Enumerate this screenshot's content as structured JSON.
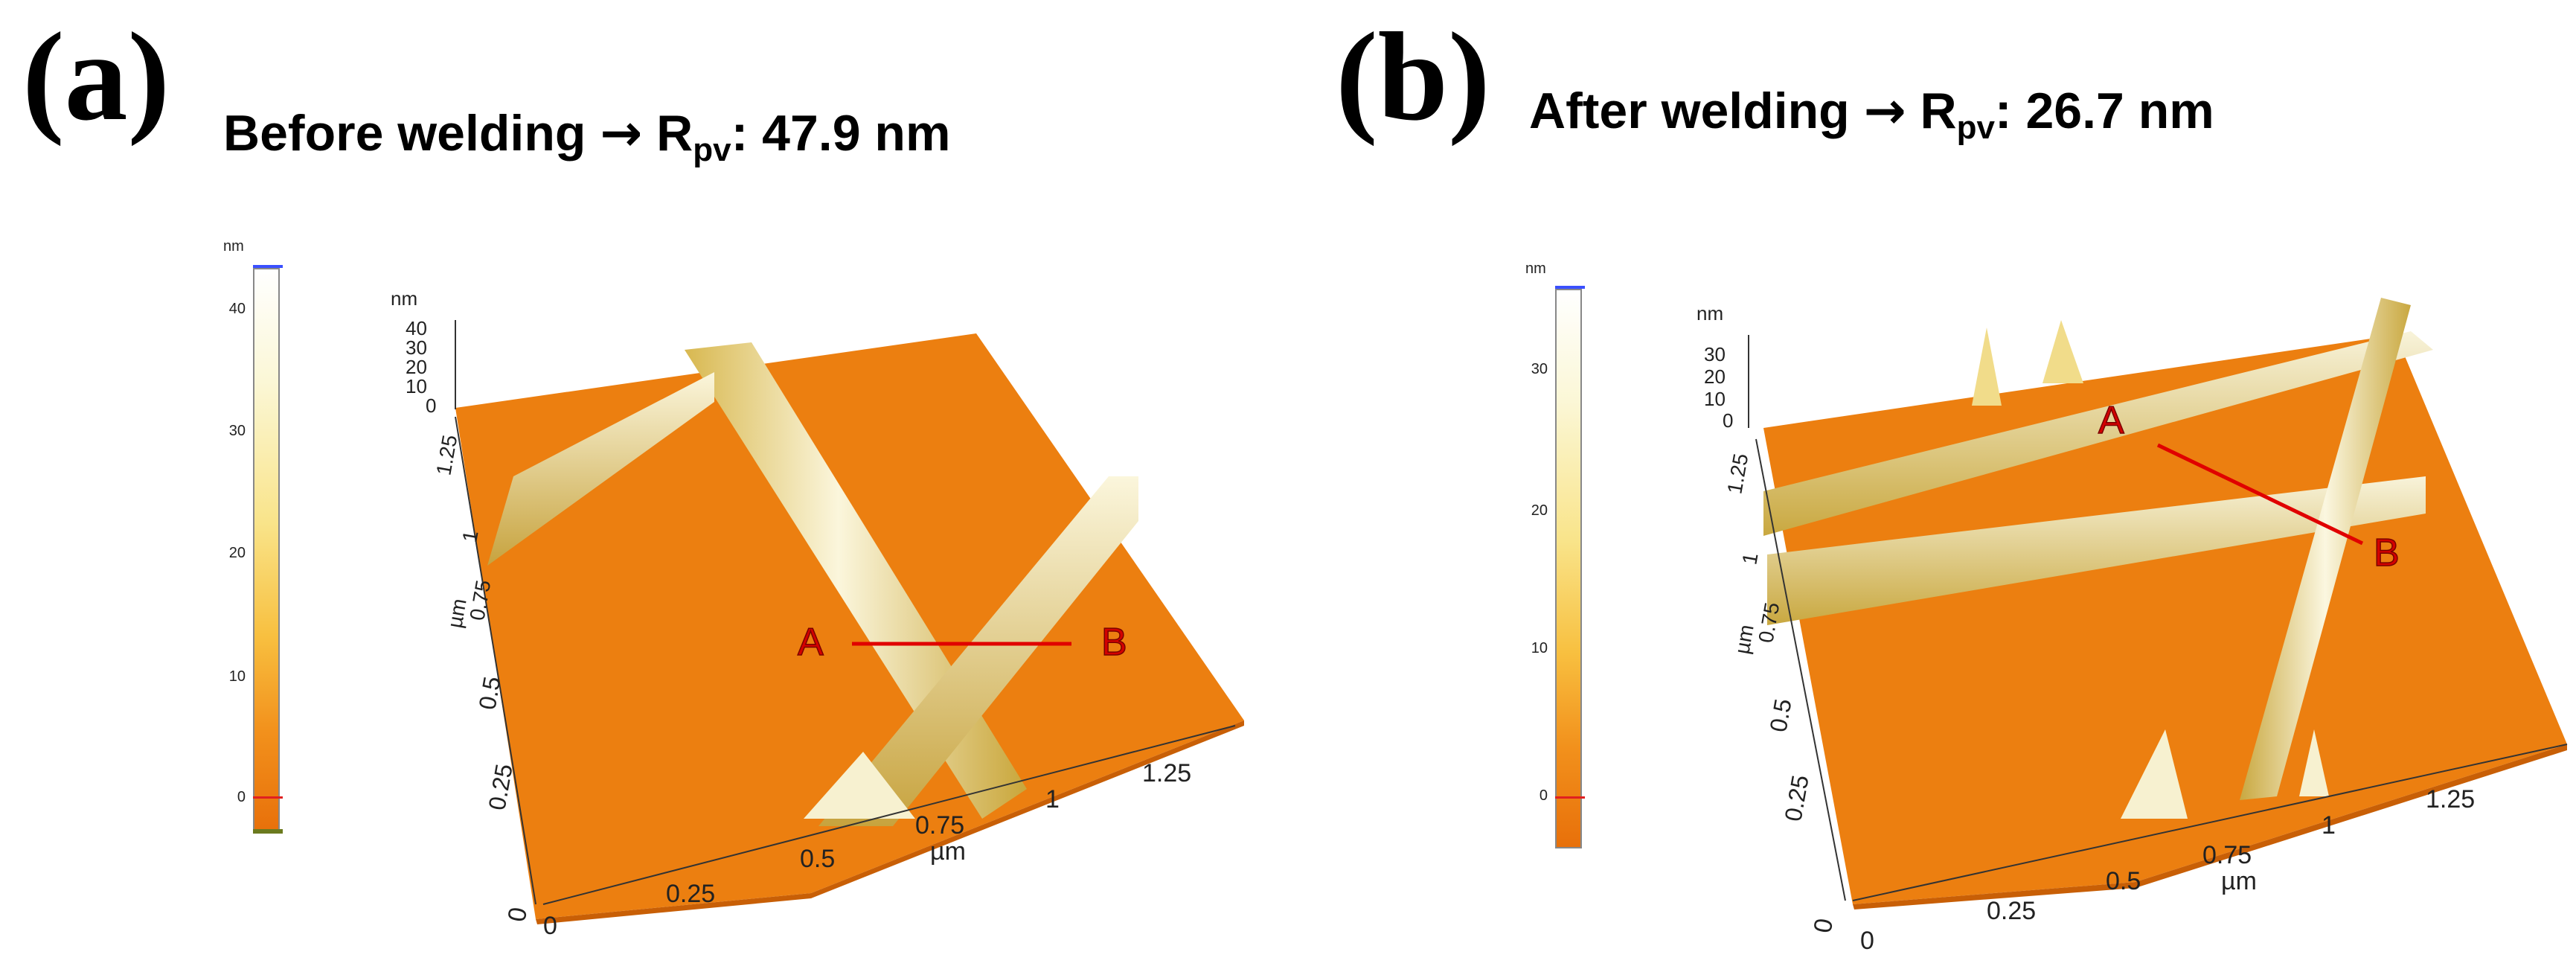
{
  "panel_a": {
    "letter": "(a)",
    "title_prefix": "Before welding ",
    "arrow": "→",
    "title_r": " R",
    "title_sub": "pv",
    "title_value": ": 47.9 nm",
    "colorbar": {
      "unit": "nm",
      "ticks": [
        "40",
        "30",
        "20",
        "10",
        "0"
      ]
    },
    "z_axis": {
      "unit": "nm",
      "ticks": [
        "40",
        "30",
        "20",
        "10",
        "0"
      ]
    },
    "y_axis": {
      "unit": "µm",
      "ticks": [
        "1.25",
        "1",
        "0.75",
        "0.5",
        "0.25",
        "0"
      ]
    },
    "x_axis": {
      "unit": "µm",
      "ticks": [
        "0",
        "0.25",
        "0.5",
        "0.75",
        "1",
        "1.25"
      ]
    },
    "marker_a": "A",
    "marker_b": "B"
  },
  "panel_b": {
    "letter": "(b)",
    "title_prefix": "After welding ",
    "arrow": "→",
    "title_r": " R",
    "title_sub": "pv",
    "title_value": ": 26.7 nm",
    "colorbar": {
      "unit": "nm",
      "ticks": [
        "30",
        "20",
        "10",
        "0"
      ]
    },
    "z_axis": {
      "unit": "nm",
      "ticks": [
        "30",
        "20",
        "10",
        "0"
      ]
    },
    "y_axis": {
      "unit": "µm",
      "ticks": [
        "1.25",
        "1",
        "0.75",
        "0.5",
        "0.25",
        "0"
      ]
    },
    "x_axis": {
      "unit": "µm",
      "ticks": [
        "0",
        "0.25",
        "0.5",
        "0.75",
        "1",
        "1.25"
      ]
    },
    "marker_a": "A",
    "marker_b": "B"
  },
  "colors": {
    "surface": "#ec7f10",
    "wire_light": "#f6f0c8",
    "wire_mid": "#e4cf7a",
    "profile_line": "#e00000",
    "marker_text": "#d40000"
  }
}
